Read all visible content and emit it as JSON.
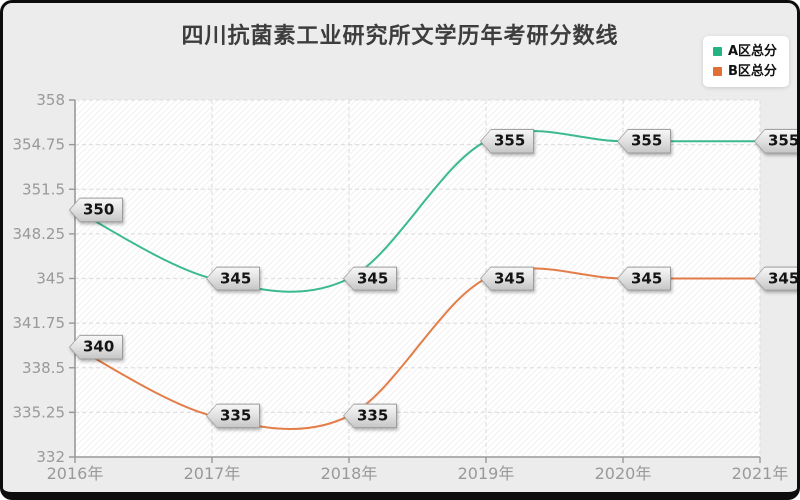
{
  "title": "四川抗菌素工业研究所文学历年考研分数线",
  "colors": {
    "card_bg": "#ececec",
    "card_border": "#0d0d0d",
    "plot_bg": "#ffffff",
    "hatch": "rgba(0,0,0,0.05)",
    "grid": "#e0e0e0",
    "axis": "#999999",
    "tick_text": "#999999",
    "title_text": "#3d3d3d"
  },
  "legend": {
    "items": [
      {
        "label": "A区总分",
        "color": "#26b384"
      },
      {
        "label": "B区总分",
        "color": "#e06f35"
      }
    ]
  },
  "chart_data": {
    "type": "line",
    "title": "四川抗菌素工业研究所文学历年考研分数线",
    "x_categories": [
      "2016年",
      "2017年",
      "2018年",
      "2019年",
      "2020年",
      "2021年"
    ],
    "series": [
      {
        "name": "A区总分",
        "color": "#26b384",
        "values": [
          350,
          345,
          345,
          355,
          355,
          355
        ]
      },
      {
        "name": "B区总分",
        "color": "#e06f35",
        "values": [
          340,
          335,
          335,
          345,
          345,
          345
        ]
      }
    ],
    "y_ticks": [
      332,
      335.25,
      338.5,
      341.75,
      345,
      348.25,
      351.5,
      354.75,
      358
    ],
    "ylim": [
      332,
      358
    ],
    "xlabel": "",
    "ylabel": "",
    "smooth": true,
    "grid": "dashed",
    "legend_position": "top-right",
    "point_labels_visible": true
  }
}
